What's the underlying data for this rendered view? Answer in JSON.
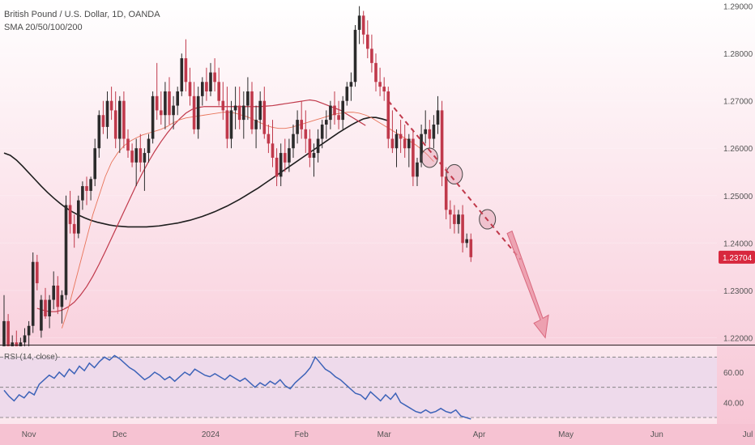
{
  "header": {
    "symbol_line": "British Pound / U.S. Dollar, 1D, OANDA",
    "indicator_line": "SMA 20/50/100/200"
  },
  "rsi_label": "RSI (14, close)",
  "colors": {
    "background": "#f7c8d6",
    "up_candle": "#2b2b2b",
    "down_candle": "#c0394b",
    "sma_long": "#1e1e1e",
    "sma_mid": "#c0394b",
    "sma_short": "#e8745a",
    "rsi_line": "#3d63b8",
    "rsi_band": "#e6d2ea",
    "price_badge": "#d8283e"
  },
  "chart_data": {
    "type": "candlestick",
    "ylim": [
      1.2187,
      1.2913
    ],
    "yticks": [
      "1.29000",
      "1.28000",
      "1.27000",
      "1.26000",
      "1.25000",
      "1.24000",
      "1.23000",
      "1.22000"
    ],
    "ytick_values": [
      1.29,
      1.28,
      1.27,
      1.26,
      1.25,
      1.24,
      1.23,
      1.22
    ],
    "xticks": [
      "Nov",
      "Dec",
      "2024",
      "Feb",
      "Mar",
      "Apr",
      "May",
      "Jun",
      "Jul"
    ],
    "xtick_index": [
      6,
      28,
      50,
      72,
      92,
      115,
      136,
      158,
      180
    ],
    "last_price": "1.23704",
    "candles": [
      [
        1.218,
        1.229,
        1.2165,
        1.2235
      ],
      [
        1.2235,
        1.225,
        1.21,
        1.215
      ],
      [
        1.215,
        1.2205,
        1.212,
        1.219
      ],
      [
        1.219,
        1.2215,
        1.216,
        1.2175
      ],
      [
        1.2175,
        1.22,
        1.2155,
        1.219
      ],
      [
        1.219,
        1.222,
        1.217,
        1.2205
      ],
      [
        1.2205,
        1.2235,
        1.218,
        1.2225
      ],
      [
        1.2225,
        1.238,
        1.221,
        1.236
      ],
      [
        1.236,
        1.2375,
        1.23,
        1.2315
      ],
      [
        1.2215,
        1.229,
        1.22,
        1.228
      ],
      [
        1.228,
        1.2305,
        1.224,
        1.2245
      ],
      [
        1.2245,
        1.229,
        1.222,
        1.228
      ],
      [
        1.228,
        1.234,
        1.226,
        1.231
      ],
      [
        1.231,
        1.233,
        1.225,
        1.2265
      ],
      [
        1.2265,
        1.23,
        1.223,
        1.229
      ],
      [
        1.229,
        1.25,
        1.228,
        1.248
      ],
      [
        1.248,
        1.251,
        1.242,
        1.244
      ],
      [
        1.244,
        1.246,
        1.239,
        1.242
      ],
      [
        1.242,
        1.25,
        1.241,
        1.249
      ],
      [
        1.249,
        1.253,
        1.247,
        1.252
      ],
      [
        1.252,
        1.254,
        1.248,
        1.251
      ],
      [
        1.251,
        1.254,
        1.249,
        1.2535
      ],
      [
        1.2535,
        1.262,
        1.252,
        1.26
      ],
      [
        1.26,
        1.268,
        1.258,
        1.267
      ],
      [
        1.267,
        1.27,
        1.263,
        1.2645
      ],
      [
        1.2645,
        1.272,
        1.262,
        1.27
      ],
      [
        1.27,
        1.273,
        1.266,
        1.268
      ],
      [
        1.268,
        1.272,
        1.26,
        1.262
      ],
      [
        1.262,
        1.271,
        1.259,
        1.27
      ],
      [
        1.27,
        1.272,
        1.26,
        1.262
      ],
      [
        1.262,
        1.264,
        1.258,
        1.2595
      ],
      [
        1.2595,
        1.261,
        1.256,
        1.257
      ],
      [
        1.257,
        1.262,
        1.252,
        1.26
      ],
      [
        1.26,
        1.263,
        1.255,
        1.257
      ],
      [
        1.257,
        1.26,
        1.251,
        1.259
      ],
      [
        1.259,
        1.263,
        1.257,
        1.262
      ],
      [
        1.262,
        1.272,
        1.261,
        1.271
      ],
      [
        1.271,
        1.278,
        1.266,
        1.268
      ],
      [
        1.268,
        1.272,
        1.265,
        1.267
      ],
      [
        1.267,
        1.274,
        1.264,
        1.272
      ],
      [
        1.272,
        1.275,
        1.265,
        1.267
      ],
      [
        1.267,
        1.271,
        1.264,
        1.269
      ],
      [
        1.269,
        1.273,
        1.267,
        1.272
      ],
      [
        1.272,
        1.28,
        1.271,
        1.279
      ],
      [
        1.279,
        1.283,
        1.272,
        1.274
      ],
      [
        1.274,
        1.277,
        1.269,
        1.271
      ],
      [
        1.271,
        1.274,
        1.263,
        1.264
      ],
      [
        1.264,
        1.273,
        1.262,
        1.271
      ],
      [
        1.271,
        1.275,
        1.269,
        1.274
      ],
      [
        1.274,
        1.277,
        1.27,
        1.272
      ],
      [
        1.272,
        1.278,
        1.271,
        1.276
      ],
      [
        1.276,
        1.279,
        1.272,
        1.274
      ],
      [
        1.274,
        1.277,
        1.269,
        1.27
      ],
      [
        1.27,
        1.274,
        1.266,
        1.268
      ],
      [
        1.268,
        1.273,
        1.26,
        1.262
      ],
      [
        1.262,
        1.27,
        1.26,
        1.268
      ],
      [
        1.268,
        1.273,
        1.264,
        1.269
      ],
      [
        1.269,
        1.273,
        1.264,
        1.266
      ],
      [
        1.266,
        1.272,
        1.262,
        1.269
      ],
      [
        1.269,
        1.275,
        1.266,
        1.272
      ],
      [
        1.272,
        1.274,
        1.263,
        1.264
      ],
      [
        1.264,
        1.269,
        1.26,
        1.266
      ],
      [
        1.266,
        1.272,
        1.264,
        1.27
      ],
      [
        1.27,
        1.273,
        1.262,
        1.263
      ],
      [
        1.263,
        1.265,
        1.259,
        1.261
      ],
      [
        1.261,
        1.266,
        1.256,
        1.258
      ],
      [
        1.258,
        1.26,
        1.252,
        1.254
      ],
      [
        1.254,
        1.261,
        1.252,
        1.259
      ],
      [
        1.259,
        1.262,
        1.255,
        1.257
      ],
      [
        1.257,
        1.262,
        1.255,
        1.26
      ],
      [
        1.26,
        1.265,
        1.258,
        1.263
      ],
      [
        1.263,
        1.268,
        1.261,
        1.266
      ],
      [
        1.266,
        1.27,
        1.262,
        1.264
      ],
      [
        1.264,
        1.268,
        1.259,
        1.262
      ],
      [
        1.262,
        1.264,
        1.256,
        1.258
      ],
      [
        1.258,
        1.261,
        1.254,
        1.259
      ],
      [
        1.259,
        1.264,
        1.257,
        1.262
      ],
      [
        1.262,
        1.266,
        1.26,
        1.265
      ],
      [
        1.265,
        1.268,
        1.262,
        1.266
      ],
      [
        1.266,
        1.27,
        1.264,
        1.269
      ],
      [
        1.269,
        1.272,
        1.265,
        1.267
      ],
      [
        1.267,
        1.27,
        1.264,
        1.266
      ],
      [
        1.266,
        1.271,
        1.264,
        1.27
      ],
      [
        1.27,
        1.274,
        1.269,
        1.273
      ],
      [
        1.273,
        1.276,
        1.27,
        1.274
      ],
      [
        1.274,
        1.286,
        1.273,
        1.285
      ],
      [
        1.285,
        1.29,
        1.282,
        1.288
      ],
      [
        1.288,
        1.289,
        1.282,
        1.284
      ],
      [
        1.284,
        1.287,
        1.279,
        1.281
      ],
      [
        1.281,
        1.284,
        1.276,
        1.278
      ],
      [
        1.278,
        1.28,
        1.272,
        1.274
      ],
      [
        1.274,
        1.277,
        1.271,
        1.273
      ],
      [
        1.273,
        1.275,
        1.27,
        1.272
      ],
      [
        1.272,
        1.273,
        1.26,
        1.262
      ],
      [
        1.262,
        1.268,
        1.259,
        1.26
      ],
      [
        1.26,
        1.264,
        1.256,
        1.263
      ],
      [
        1.263,
        1.266,
        1.259,
        1.262
      ],
      [
        1.262,
        1.265,
        1.258,
        1.26
      ],
      [
        1.26,
        1.263,
        1.256,
        1.262
      ],
      [
        1.262,
        1.264,
        1.252,
        1.254
      ],
      [
        1.254,
        1.258,
        1.252,
        1.257
      ],
      [
        1.257,
        1.265,
        1.256,
        1.263
      ],
      [
        1.263,
        1.268,
        1.261,
        1.264
      ],
      [
        1.264,
        1.266,
        1.26,
        1.262
      ],
      [
        1.262,
        1.267,
        1.26,
        1.265
      ],
      [
        1.265,
        1.271,
        1.263,
        1.268
      ],
      [
        1.268,
        1.27,
        1.252,
        1.254
      ],
      [
        1.254,
        1.256,
        1.245,
        1.247
      ],
      [
        1.247,
        1.249,
        1.243,
        1.246
      ],
      [
        1.246,
        1.248,
        1.242,
        1.244
      ],
      [
        1.244,
        1.247,
        1.242,
        1.246
      ],
      [
        1.246,
        1.248,
        1.238,
        1.24
      ],
      [
        1.24,
        1.242,
        1.239,
        1.2408
      ],
      [
        1.2408,
        1.242,
        1.236,
        1.237
      ]
    ],
    "sma_long": [
      1.259,
      1.2585,
      1.2575,
      1.2562,
      1.2548,
      1.2534,
      1.252,
      1.2507,
      1.2495,
      1.2484,
      1.2474,
      1.2466,
      1.2459,
      1.2453,
      1.2448,
      1.2444,
      1.2441,
      1.2438,
      1.2436,
      1.2435,
      1.2434,
      1.2434,
      1.2434,
      1.2434,
      1.2435,
      1.2436,
      1.2438,
      1.244,
      1.2442,
      1.2445,
      1.2448,
      1.2452,
      1.2456,
      1.2461,
      1.2466,
      1.2472,
      1.2478,
      1.2485,
      1.2492,
      1.25,
      1.2508,
      1.2516,
      1.2525,
      1.2534,
      1.2543,
      1.2552,
      1.2561,
      1.257,
      1.2579,
      1.2588,
      1.2597,
      1.2606,
      1.2615,
      1.2624,
      1.2633,
      1.2641,
      1.2649,
      1.2656,
      1.2662,
      1.2665,
      1.2665,
      1.2662,
      1.2658
    ],
    "sma_long_start": 0,
    "sma_mid": [
      1.2262,
      1.2258,
      1.2255,
      1.2255,
      1.2258,
      1.2265,
      1.2275,
      1.229,
      1.2308,
      1.233,
      1.2355,
      1.2382,
      1.241,
      1.2438,
      1.2466,
      1.2494,
      1.2522,
      1.2548,
      1.2572,
      1.2594,
      1.2614,
      1.2632,
      1.2648,
      1.2662,
      1.2674,
      1.2682,
      1.2686,
      1.2688,
      1.2688,
      1.2688,
      1.2688,
      1.2688,
      1.2688,
      1.2688,
      1.2688,
      1.2688,
      1.2688,
      1.2689,
      1.269,
      1.2692,
      1.2694,
      1.2696,
      1.2698,
      1.27,
      1.2702,
      1.27,
      1.2695,
      1.269,
      1.2685,
      1.268,
      1.2672,
      1.2664,
      1.2656,
      1.2648
    ],
    "sma_mid_start": 8,
    "sma_short": [
      1.222,
      1.226,
      1.231,
      1.236,
      1.241,
      1.246,
      1.25,
      1.254,
      1.257,
      1.259,
      1.2605,
      1.2615,
      1.2622,
      1.2628,
      1.2632,
      1.2636,
      1.264,
      1.2646,
      1.2654,
      1.266,
      1.2664,
      1.2666,
      1.2668,
      1.267,
      1.2672,
      1.2674,
      1.2676,
      1.2676,
      1.2674,
      1.267,
      1.2666,
      1.266,
      1.2654,
      1.2648,
      1.2644,
      1.2642,
      1.2642,
      1.2644,
      1.2648,
      1.2652,
      1.2656,
      1.266,
      1.2664,
      1.2668,
      1.2672,
      1.2674,
      1.2676,
      1.2676,
      1.2674,
      1.267,
      1.2664,
      1.2656,
      1.2648,
      1.264,
      1.2632,
      1.2624,
      1.2616,
      1.2608,
      1.2598,
      1.2586,
      1.2572
    ],
    "sma_short_start": 14,
    "rsi": {
      "ylim": [
        30,
        75
      ],
      "levels": [
        70,
        50,
        30
      ],
      "yticks": [
        "60.00",
        "40.00"
      ],
      "ytick_values": [
        60,
        40
      ],
      "values": [
        48,
        44,
        41,
        45,
        43,
        47,
        45,
        52,
        55,
        58,
        56,
        60,
        57,
        62,
        59,
        64,
        61,
        66,
        63,
        67,
        70,
        68,
        71,
        69,
        66,
        63,
        61,
        58,
        55,
        57,
        60,
        58,
        55,
        57,
        54,
        57,
        60,
        58,
        62,
        60,
        58,
        57,
        59,
        57,
        55,
        58,
        56,
        54,
        56,
        53,
        50,
        53,
        51,
        54,
        52,
        55,
        51,
        49,
        53,
        56,
        59,
        63,
        70,
        66,
        62,
        60,
        57,
        55,
        52,
        49,
        46,
        45,
        42,
        47,
        44,
        41,
        45,
        42,
        46,
        40,
        38,
        36,
        34,
        33,
        35,
        33,
        34,
        36,
        34,
        33,
        35,
        31,
        30,
        29
      ],
      "values_start": 0
    }
  }
}
